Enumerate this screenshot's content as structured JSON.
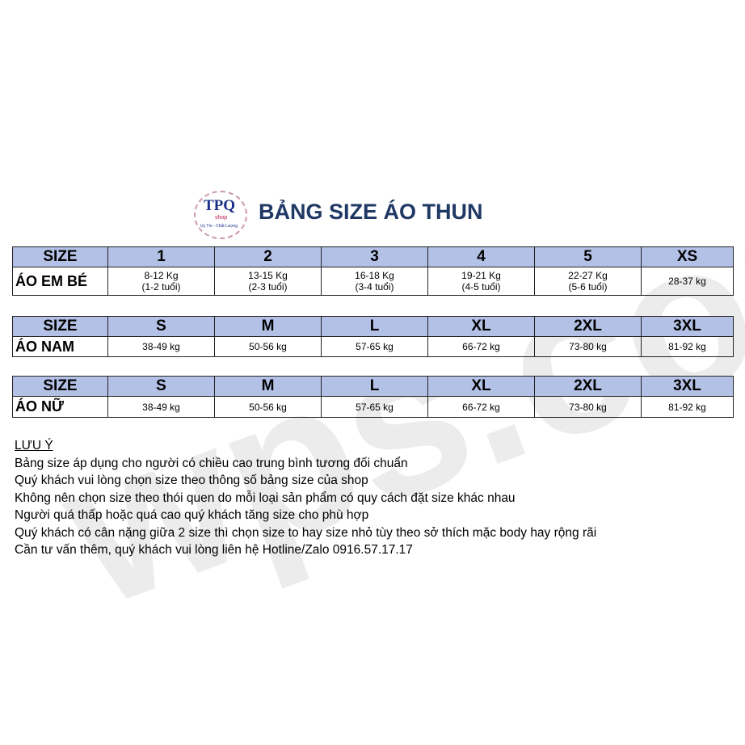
{
  "watermark": "wps.com",
  "logo": {
    "brand": "TPQ",
    "sub": "shop",
    "slogan": "Uy Tín - Chất Lượng"
  },
  "title": "BẢNG SIZE ÁO THUN",
  "tables": [
    {
      "header": [
        "SIZE",
        "1",
        "2",
        "3",
        "4",
        "5",
        "XS"
      ],
      "label": "ÁO EM BÉ",
      "cells": [
        [
          "8-12 Kg",
          "(1-2 tuổi)"
        ],
        [
          "13-15 Kg",
          "(2-3 tuổi)"
        ],
        [
          "16-18 Kg",
          "(3-4 tuổi)"
        ],
        [
          "19-21 Kg",
          "(4-5 tuổi)"
        ],
        [
          "22-27 Kg",
          "(5-6 tuổi)"
        ],
        [
          "28-37 kg",
          ""
        ]
      ]
    },
    {
      "header": [
        "SIZE",
        "S",
        "M",
        "L",
        "XL",
        "2XL",
        "3XL"
      ],
      "label": "ÁO NAM",
      "cells": [
        [
          "38-49 kg"
        ],
        [
          "50-56 kg"
        ],
        [
          "57-65 kg"
        ],
        [
          "66-72 kg"
        ],
        [
          "73-80 kg"
        ],
        [
          "81-92 kg"
        ]
      ]
    },
    {
      "header": [
        "SIZE",
        "S",
        "M",
        "L",
        "XL",
        "2XL",
        "3XL"
      ],
      "label": "ÁO NỮ",
      "cells": [
        [
          "38-49 kg"
        ],
        [
          "50-56 kg"
        ],
        [
          "57-65 kg"
        ],
        [
          "66-72 kg"
        ],
        [
          "73-80 kg"
        ],
        [
          "81-92 kg"
        ]
      ]
    }
  ],
  "notes": {
    "heading": "LƯU Ý",
    "lines": [
      "Bảng size áp dụng cho người có chiều cao trung bình tương đối chuẩn",
      "Quý khách vui lòng chọn size theo thông số bảng size của shop",
      "Không nên chọn size theo thói quen do mỗi loại sản phẩm có quy cách đặt size khác nhau",
      "Người quá thấp hoặc quá cao quý khách tăng size cho phù hợp",
      "Quý khách có cân nặng giữa 2 size thì chọn size to hay size nhỏ tùy theo sở thích mặc body hay rộng rãi",
      "Cần tư vấn thêm, quý khách vui lòng liên hệ Hotline/Zalo 0916.57.17.17"
    ]
  }
}
